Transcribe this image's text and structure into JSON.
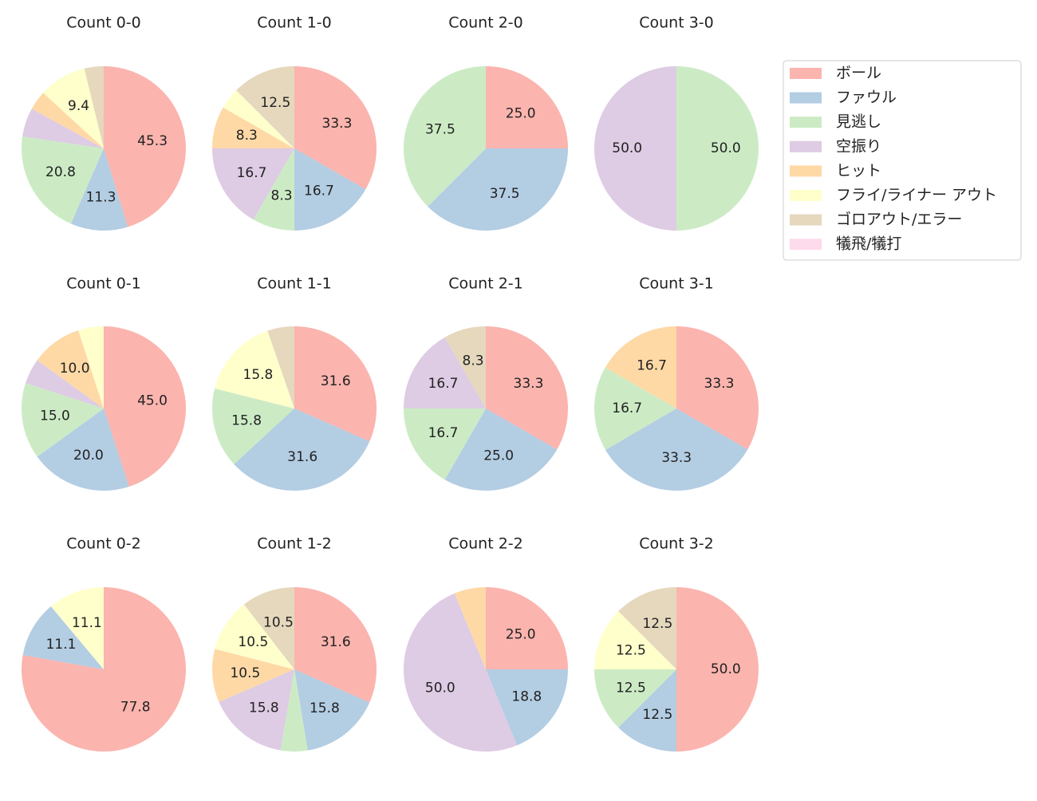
{
  "legend": {
    "labels": [
      "ボール",
      "ファウル",
      "見逃し",
      "空振り",
      "ヒット",
      "フライ/ライナー アウト",
      "ゴロアウト/エラー",
      "犠飛/犠打"
    ],
    "colors": [
      "#fbb4ae",
      "#b3cde3",
      "#ccebc5",
      "#decbe4",
      "#fed9a6",
      "#ffffcc",
      "#e5d8bd",
      "#fddaec"
    ]
  },
  "chart_data": [
    {
      "type": "pie",
      "title": "Count 0-0",
      "values": [
        45.3,
        11.3,
        20.8,
        5.7,
        3.8,
        9.4,
        3.8,
        0
      ],
      "value_labels": [
        "45.3",
        "11.3",
        "20.8",
        null,
        null,
        "9.4",
        null,
        null
      ]
    },
    {
      "type": "pie",
      "title": "Count 1-0",
      "values": [
        33.3,
        16.7,
        8.3,
        16.7,
        8.3,
        4.2,
        12.5,
        0
      ],
      "value_labels": [
        "33.3",
        "16.7",
        "8.3",
        "16.7",
        "8.3",
        null,
        "12.5",
        null
      ]
    },
    {
      "type": "pie",
      "title": "Count 2-0",
      "values": [
        25.0,
        37.5,
        37.5,
        0,
        0,
        0,
        0,
        0
      ],
      "value_labels": [
        "25.0",
        "37.5",
        "37.5",
        null,
        null,
        null,
        null,
        null
      ]
    },
    {
      "type": "pie",
      "title": "Count 3-0",
      "values": [
        0,
        0,
        50.0,
        50.0,
        0,
        0,
        0,
        0
      ],
      "value_labels": [
        null,
        null,
        "50.0",
        "50.0",
        null,
        null,
        null,
        null
      ]
    },
    {
      "type": "pie",
      "title": "Count 0-1",
      "values": [
        45.0,
        20.0,
        15.0,
        5.0,
        10.0,
        5.0,
        0,
        0
      ],
      "value_labels": [
        "45.0",
        "20.0",
        "15.0",
        null,
        "10.0",
        null,
        null,
        null
      ]
    },
    {
      "type": "pie",
      "title": "Count 1-1",
      "values": [
        31.6,
        31.6,
        15.8,
        0,
        0,
        15.8,
        5.3,
        0
      ],
      "value_labels": [
        "31.6",
        "31.6",
        "15.8",
        null,
        null,
        "15.8",
        null,
        null
      ]
    },
    {
      "type": "pie",
      "title": "Count 2-1",
      "values": [
        33.3,
        25.0,
        16.7,
        16.7,
        0,
        0,
        8.3,
        0
      ],
      "value_labels": [
        "33.3",
        "25.0",
        "16.7",
        "16.7",
        null,
        null,
        "8.3",
        null
      ]
    },
    {
      "type": "pie",
      "title": "Count 3-1",
      "values": [
        33.3,
        33.3,
        16.7,
        0,
        16.7,
        0,
        0,
        0
      ],
      "value_labels": [
        "33.3",
        "33.3",
        "16.7",
        null,
        "16.7",
        null,
        null,
        null
      ]
    },
    {
      "type": "pie",
      "title": "Count 0-2",
      "values": [
        77.8,
        11.1,
        0,
        0,
        0,
        11.1,
        0,
        0
      ],
      "value_labels": [
        "77.8",
        "11.1",
        null,
        null,
        null,
        "11.1",
        null,
        null
      ]
    },
    {
      "type": "pie",
      "title": "Count 1-2",
      "values": [
        31.6,
        15.8,
        5.3,
        15.8,
        10.5,
        10.5,
        10.5,
        0
      ],
      "value_labels": [
        "31.6",
        "15.8",
        null,
        "15.8",
        "10.5",
        "10.5",
        "10.5",
        null
      ]
    },
    {
      "type": "pie",
      "title": "Count 2-2",
      "values": [
        25.0,
        18.8,
        0,
        50.0,
        6.2,
        0,
        0,
        0
      ],
      "value_labels": [
        "25.0",
        "18.8",
        null,
        "50.0",
        null,
        null,
        null,
        null
      ]
    },
    {
      "type": "pie",
      "title": "Count 3-2",
      "values": [
        50.0,
        12.5,
        12.5,
        0,
        0,
        12.5,
        12.5,
        0
      ],
      "value_labels": [
        "50.0",
        "12.5",
        "12.5",
        null,
        null,
        "12.5",
        "12.5",
        null
      ]
    }
  ]
}
